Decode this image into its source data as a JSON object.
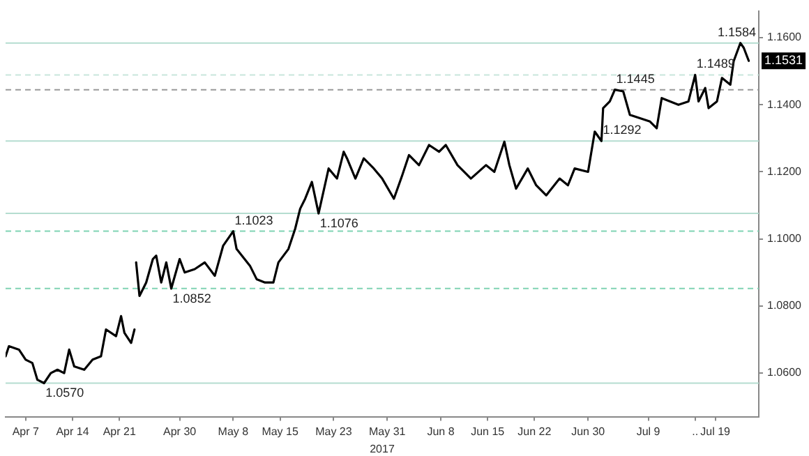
{
  "chart_data": {
    "type": "line",
    "xlabel": "2017",
    "x": [
      "2017-04-04T00:00",
      "2017-04-04T12:00",
      "2017-04-06T00:00",
      "2017-04-07T00:00",
      "2017-04-08T00:00",
      "2017-04-08T18:00",
      "2017-04-09T18:00",
      "2017-04-10T18:00",
      "2017-04-11T18:00",
      "2017-04-12T18:00",
      "2017-04-13T12:00",
      "2017-04-14T06:00",
      "2017-04-15T18:00",
      "2017-04-17T00:00",
      "2017-04-18T06:00",
      "2017-04-19T00:00",
      "2017-04-20T12:00",
      "2017-04-21T06:00",
      "2017-04-21T18:00",
      "2017-04-22T18:00",
      "2017-04-23T06:00",
      "2017-04-23T09:00",
      "2017-04-23T12:00",
      "2017-04-24T00:00",
      "2017-04-25T00:00",
      "2017-04-26T00:00",
      "2017-04-26T12:00",
      "2017-04-27T06:00",
      "2017-04-28T00:00",
      "2017-04-28T18:00",
      "2017-04-29T00:00",
      "2017-04-30T00:00",
      "2017-04-30T18:00",
      "2017-05-02T06:00",
      "2017-05-03T18:00",
      "2017-05-05T06:00",
      "2017-05-06T12:00",
      "2017-05-08T00:00",
      "2017-05-08T12:00",
      "2017-05-10T12:00",
      "2017-05-11T12:00",
      "2017-05-12T18:00",
      "2017-05-14T00:00",
      "2017-05-14T18:00",
      "2017-05-16T06:00",
      "2017-05-17T06:00",
      "2017-05-18T00:00",
      "2017-05-18T18:00",
      "2017-05-19T18:00",
      "2017-05-20T18:00",
      "2017-05-22T06:00",
      "2017-05-23T12:00",
      "2017-05-24T12:00",
      "2017-05-25T00:00",
      "2017-05-26T06:00",
      "2017-05-27T12:00",
      "2017-05-29T00:00",
      "2017-05-30T06:00",
      "2017-06-01T00:00",
      "2017-06-02T06:00",
      "2017-06-03T06:00",
      "2017-06-04T18:00",
      "2017-06-06T06:00",
      "2017-06-07T18:00",
      "2017-06-08T18:00",
      "2017-06-10T12:00",
      "2017-06-12T12:00",
      "2017-06-14T18:00",
      "2017-06-16T00:00",
      "2017-06-17T12:00",
      "2017-06-18T06:00",
      "2017-06-19T06:00",
      "2017-06-21T00:00",
      "2017-06-22T06:00",
      "2017-06-23T18:00",
      "2017-06-25T18:00",
      "2017-06-27T00:00",
      "2017-06-28T00:00",
      "2017-06-30T00:00",
      "2017-07-01T00:00",
      "2017-07-02T00:00",
      "2017-07-02T06:00",
      "2017-07-03T06:00",
      "2017-07-04T00:00",
      "2017-07-05T06:00",
      "2017-07-06T06:00",
      "2017-07-07T18:00",
      "2017-07-09T06:00",
      "2017-07-10T06:00",
      "2017-07-11T00:00",
      "2017-07-12T06:00",
      "2017-07-13T12:00",
      "2017-07-15T00:00",
      "2017-07-16T00:00",
      "2017-07-16T12:00",
      "2017-07-17T12:00",
      "2017-07-18T00:00",
      "2017-07-19T06:00",
      "2017-07-20T00:00",
      "2017-07-21T06:00",
      "2017-07-21T18:00",
      "2017-07-22T18:00",
      "2017-07-23T06:00",
      "2017-07-24T00:00"
    ],
    "series": [
      {
        "color": "#000000",
        "values": [
          1.065,
          1.068,
          1.067,
          1.064,
          1.063,
          1.058,
          1.057,
          1.06,
          1.061,
          1.06,
          1.067,
          1.062,
          1.061,
          1.064,
          1.065,
          1.073,
          1.071,
          1.077,
          1.072,
          1.069,
          1.073,
          null,
          1.093,
          1.083,
          1.087,
          1.094,
          1.095,
          1.087,
          1.093,
          1.0852,
          1.087,
          1.094,
          1.09,
          1.091,
          1.093,
          1.089,
          1.098,
          1.1023,
          1.097,
          1.092,
          1.088,
          1.087,
          1.087,
          1.093,
          1.097,
          1.103,
          1.109,
          1.112,
          1.117,
          1.1076,
          1.121,
          1.118,
          1.126,
          1.124,
          1.118,
          1.124,
          1.121,
          1.118,
          1.112,
          1.119,
          1.125,
          1.122,
          1.128,
          1.126,
          1.128,
          1.122,
          1.118,
          1.122,
          1.12,
          1.129,
          1.122,
          1.115,
          1.121,
          1.116,
          1.113,
          1.118,
          1.116,
          1.121,
          1.12,
          1.132,
          1.1292,
          1.139,
          1.141,
          1.1445,
          1.144,
          1.137,
          1.136,
          1.135,
          1.133,
          1.142,
          1.141,
          1.14,
          1.141,
          1.1489,
          1.141,
          1.145,
          1.139,
          1.141,
          1.148,
          1.146,
          1.153,
          1.1584,
          1.157,
          1.1531
        ]
      }
    ],
    "xlim": [
      "2017-04-04",
      "2017-07-25T12:00"
    ],
    "xticks": [
      {
        "value": "2017-04-07",
        "label": "Apr 7"
      },
      {
        "value": "2017-04-14",
        "label": "Apr 14"
      },
      {
        "value": "2017-04-21",
        "label": "Apr 21"
      },
      {
        "value": "2017-04-30",
        "label": "Apr 30"
      },
      {
        "value": "2017-05-08",
        "label": "May 8"
      },
      {
        "value": "2017-05-15",
        "label": "May 15"
      },
      {
        "value": "2017-05-23",
        "label": "May 23"
      },
      {
        "value": "2017-05-31",
        "label": "May 31"
      },
      {
        "value": "2017-06-08",
        "label": "Jun 8"
      },
      {
        "value": "2017-06-15",
        "label": "Jun 15"
      },
      {
        "value": "2017-06-22",
        "label": "Jun 22"
      },
      {
        "value": "2017-06-30",
        "label": "Jun 30"
      },
      {
        "value": "2017-07-09",
        "label": "Jul 9"
      },
      {
        "value": "2017-07-16",
        "label": ".."
      },
      {
        "value": "2017-07-19",
        "label": "Jul 19"
      }
    ],
    "ylim": [
      1.047,
      1.168
    ],
    "yticks": [
      {
        "value": 1.06,
        "label": "1.0600"
      },
      {
        "value": 1.08,
        "label": "1.0800"
      },
      {
        "value": 1.1,
        "label": "1.1000"
      },
      {
        "value": 1.12,
        "label": "1.1200"
      },
      {
        "value": 1.14,
        "label": "1.1400"
      },
      {
        "value": 1.16,
        "label": "1.1600"
      }
    ],
    "ref_lines": [
      {
        "axis": "y",
        "value": 1.057,
        "color": "#b5ddd0",
        "line_style": "solid"
      },
      {
        "axis": "y",
        "value": 1.0852,
        "color": "#7fd3b3",
        "line_style": "dashed"
      },
      {
        "axis": "y",
        "value": 1.1023,
        "color": "#7fd3b3",
        "line_style": "dashed"
      },
      {
        "axis": "y",
        "value": 1.1076,
        "color": "#b5ddd0",
        "line_style": "solid"
      },
      {
        "axis": "y",
        "value": 1.1292,
        "color": "#b5ddd0",
        "line_style": "solid"
      },
      {
        "axis": "y",
        "value": 1.1445,
        "color": "#999999",
        "line_style": "dashed"
      },
      {
        "axis": "y",
        "value": 1.1489,
        "color": "#c8e6dc",
        "line_style": "dashed"
      },
      {
        "axis": "y",
        "value": 1.1584,
        "color": "#b5ddd0",
        "line_style": "solid"
      }
    ],
    "annotations": [
      {
        "text": "1.0570",
        "x": "2017-04-09T18:00",
        "y": 1.057
      },
      {
        "text": "1.0852",
        "x": "2017-04-28T18:00",
        "y": 1.0852
      },
      {
        "text": "1.1023",
        "x": "2017-05-08T00:00",
        "y": 1.1023
      },
      {
        "text": "1.1076",
        "x": "2017-05-20T18:00",
        "y": 1.1076
      },
      {
        "text": "1.1292",
        "x": "2017-07-02T00:00",
        "y": 1.1292
      },
      {
        "text": "1.1445",
        "x": "2017-07-04T00:00",
        "y": 1.1445
      },
      {
        "text": "1.1489",
        "x": "2017-07-16T00:00",
        "y": 1.1489
      },
      {
        "text": "1.1584",
        "x": "2017-07-22T18:00",
        "y": 1.1584
      },
      {
        "text": "1.1531",
        "x": "2017-07-24T00:00",
        "y": 1.1531
      }
    ],
    "grid": false,
    "legend": false,
    "line_style": "solid",
    "marker": "none"
  }
}
